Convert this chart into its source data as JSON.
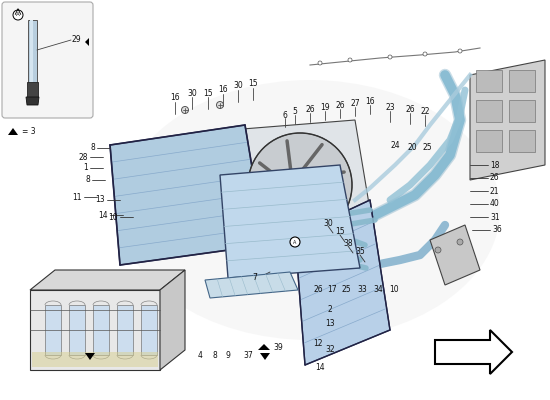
{
  "bg_color": "#ffffff",
  "light_blue": "#a8c4de",
  "mid_blue": "#7aafc8",
  "blue_hose": "#7ab8d4",
  "dark_outline": "#222222",
  "gray_light": "#cccccc",
  "gray_mid": "#999999",
  "gray_dark": "#555555",
  "inset_bg": "#f5f5f5",
  "yellow_tint": "#e8e0a0"
}
